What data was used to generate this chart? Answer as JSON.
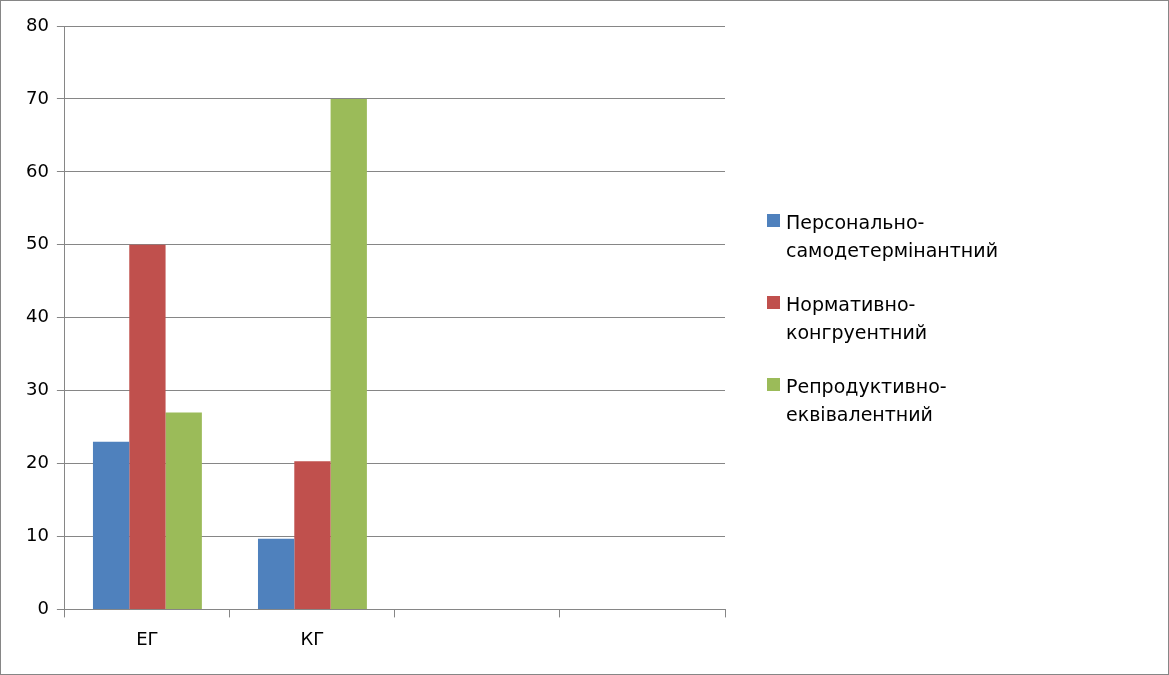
{
  "chart_data": {
    "type": "bar",
    "categories": [
      "ЕГ",
      "КГ",
      null,
      null
    ],
    "series": [
      {
        "name": "Персонально-самодетермінантний",
        "color": "#4f81bd",
        "values": [
          23,
          9.7,
          null,
          null
        ]
      },
      {
        "name": "Нормативно-конгруентний",
        "color": "#c0504d",
        "values": [
          50,
          20.3,
          null,
          null
        ]
      },
      {
        "name": "Репродуктивно-еквівалентний",
        "color": "#9bbb59",
        "values": [
          27,
          70,
          null,
          null
        ]
      }
    ],
    "ylim": [
      0,
      80
    ],
    "yticks": [
      0,
      10,
      20,
      30,
      40,
      50,
      60,
      70,
      80
    ],
    "grid": "y",
    "legend": "right"
  }
}
